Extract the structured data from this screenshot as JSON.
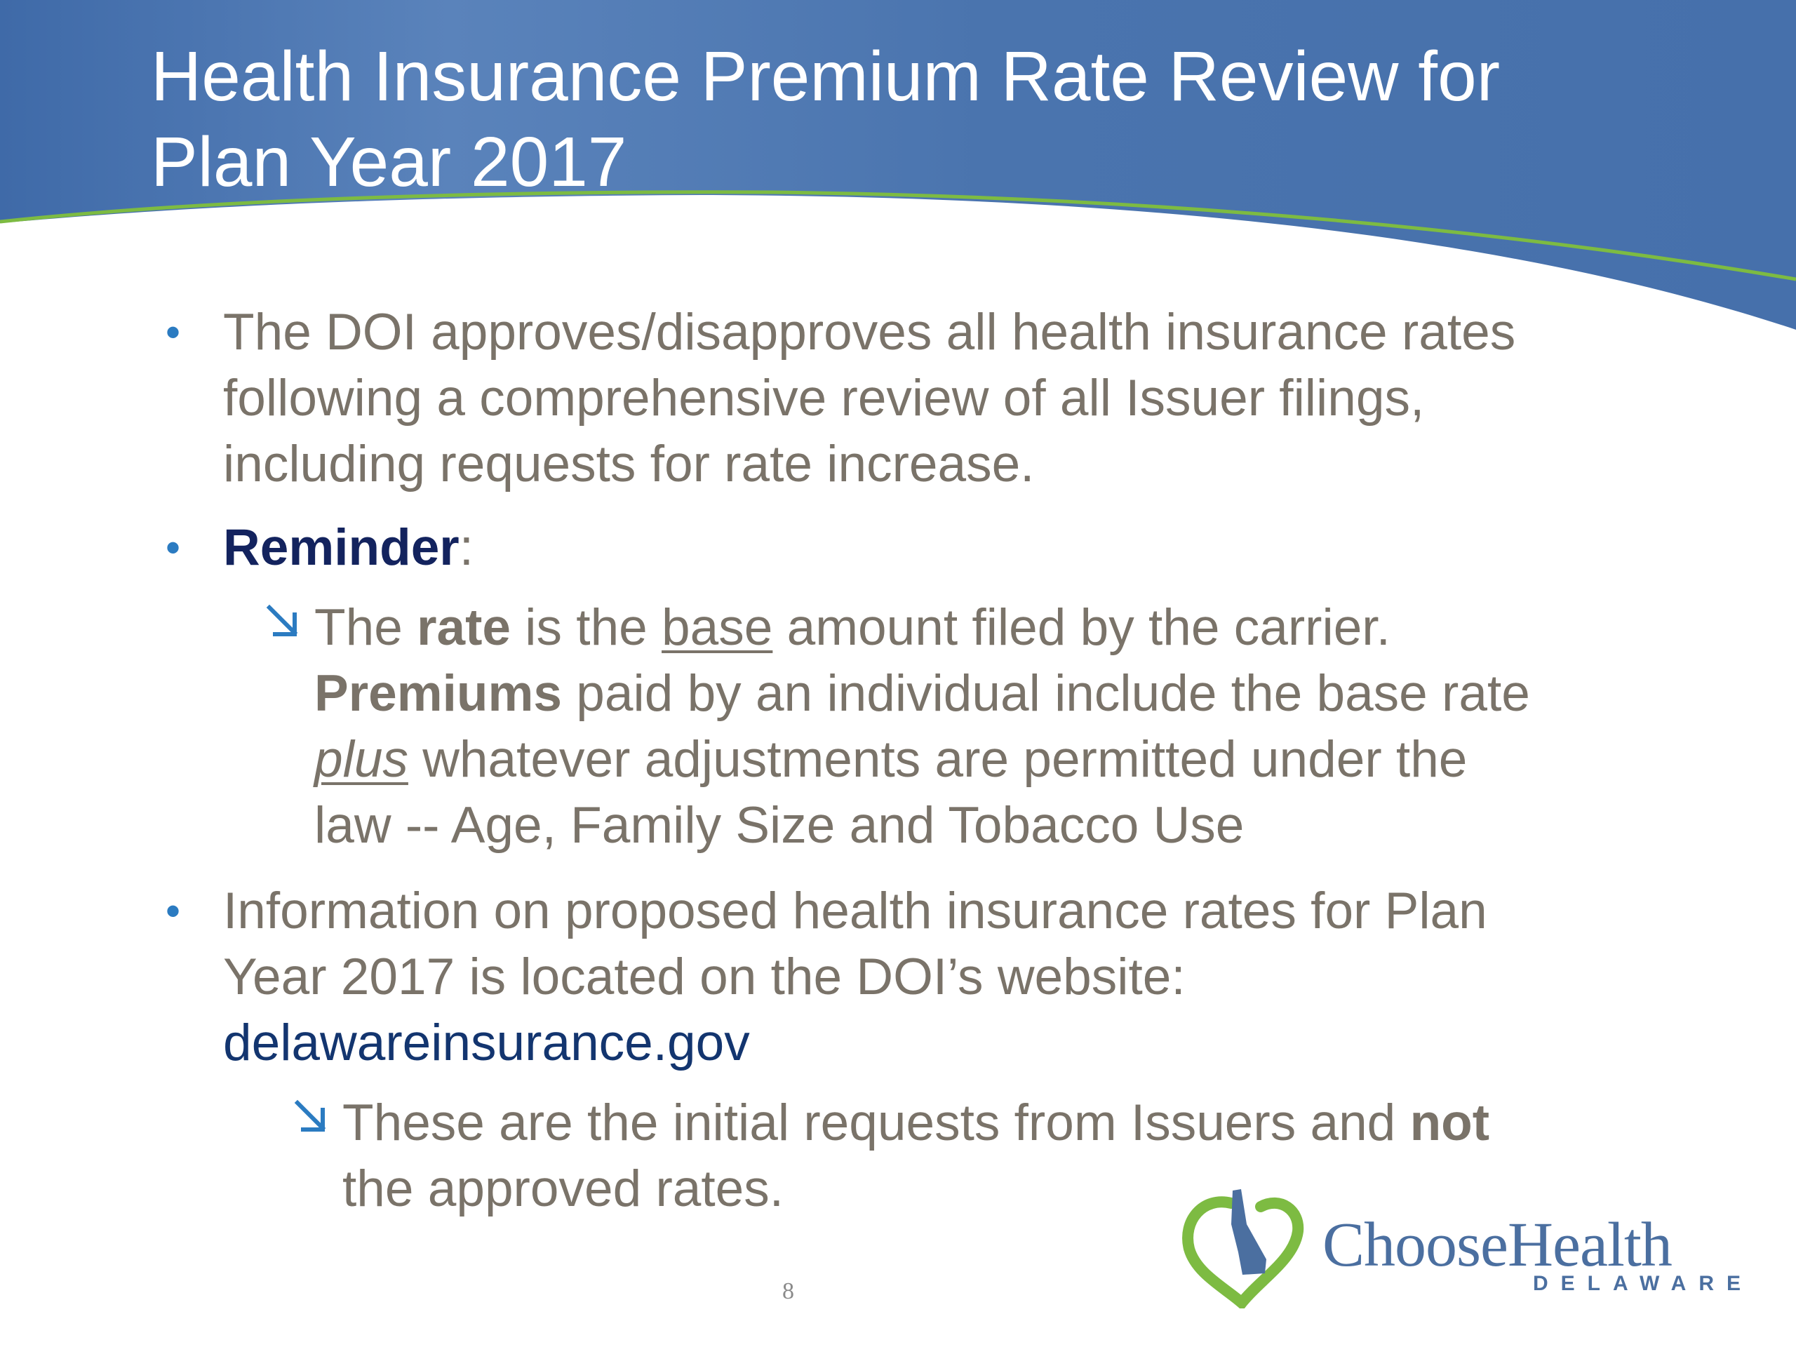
{
  "slide": {
    "title_line1": "Health Insurance Premium Rate Review for",
    "title_line2": "Plan Year 2017",
    "bullet1": {
      "line1": "The DOI approves/disapproves all health insurance rates",
      "line2": "following a comprehensive review of all Issuer filings,",
      "line3": "including requests for rate increase."
    },
    "bullet2": {
      "label": "Reminder",
      "colon": ":"
    },
    "sub1": {
      "t1": "The ",
      "rate": "rate",
      "t2": " is the ",
      "base": "base",
      "t3": " amount filed by the carrier.",
      "premiums": "Premiums",
      "t4": " paid by an individual include the base rate",
      "plus": "plus",
      "t5": " whatever adjustments are permitted under the",
      "t6": "law -- Age, Family Size and Tobacco Use"
    },
    "bullet3": {
      "line1": "Information on proposed health insurance rates for Plan",
      "line2": "Year 2017 is located on the DOI’s website:",
      "link": "delawareinsurance.gov"
    },
    "sub2": {
      "t1": "These are the initial requests from Issuers and ",
      "not": "not",
      "t2": "the approved rates."
    },
    "page_number": "8",
    "logo": {
      "word_choose": "Choose",
      "word_health": "Health",
      "subtitle": "DELAWARE"
    }
  },
  "colors": {
    "header_blue": "#4a73ad",
    "accent_green": "#7dbb42",
    "body_text": "#7a7369",
    "bullet_blue": "#2b7bc1",
    "dark_navy": "#13235e"
  }
}
